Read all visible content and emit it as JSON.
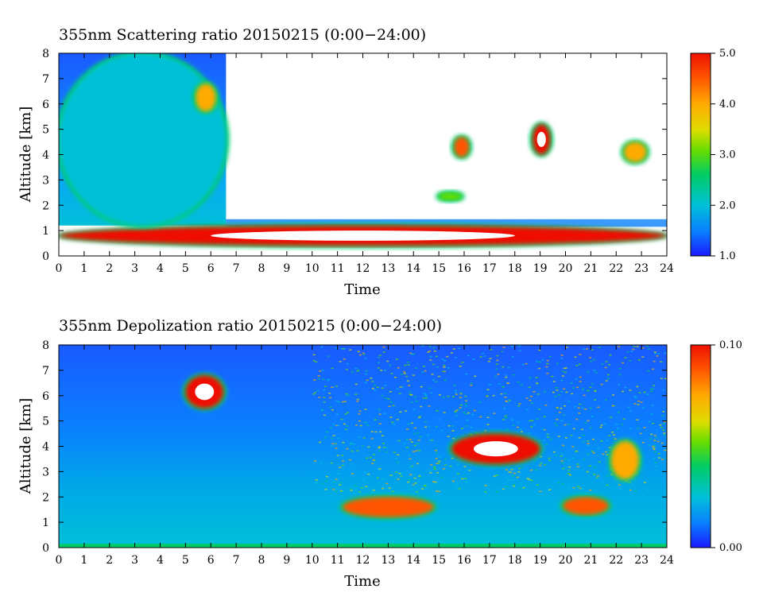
{
  "chart_data": [
    {
      "type": "heatmap",
      "title": "355nm Scattering ratio  20150215 (0:00−24:00)",
      "xlabel": "Time",
      "ylabel": "Altitude [km]",
      "xlim": [
        0,
        24
      ],
      "ylim": [
        0,
        8
      ],
      "xticks": [
        "0",
        "1",
        "2",
        "3",
        "4",
        "5",
        "6",
        "7",
        "8",
        "9",
        "10",
        "11",
        "12",
        "13",
        "14",
        "15",
        "16",
        "17",
        "18",
        "19",
        "20",
        "21",
        "22",
        "23",
        "24"
      ],
      "yticks": [
        "0",
        "1",
        "2",
        "3",
        "4",
        "5",
        "6",
        "7",
        "8"
      ],
      "colorbar": {
        "min": 1.0,
        "max": 5.0,
        "labels": [
          "5.0",
          "4.0",
          "3.0",
          "2.0",
          "1.0"
        ]
      },
      "colormap": [
        "#1a1aff",
        "#0a7fff",
        "#00c0d8",
        "#00cc66",
        "#66dd00",
        "#dddd00",
        "#ffaa00",
        "#ff5500",
        "#ee1100"
      ],
      "features": [
        {
          "name": "boundary layer",
          "t": [
            0,
            24
          ],
          "alt": [
            0.4,
            1.2
          ],
          "value": 4.8
        },
        {
          "name": "aerosol layer",
          "t": [
            0,
            6.6
          ],
          "alt": [
            1.2,
            8.0
          ],
          "value": 1.8
        },
        {
          "name": "cloud",
          "t": [
            5.4,
            6.2
          ],
          "alt": [
            5.7,
            6.8
          ],
          "value": 4.0
        },
        {
          "name": "cloud",
          "t": [
            15.6,
            16.2
          ],
          "alt": [
            3.9,
            4.7
          ],
          "value": 4.5
        },
        {
          "name": "cloud",
          "t": [
            18.7,
            19.4
          ],
          "alt": [
            4.0,
            5.2
          ],
          "value": 5.0
        },
        {
          "name": "cloud",
          "t": [
            22.3,
            23.2
          ],
          "alt": [
            3.7,
            4.5
          ],
          "value": 4.2
        },
        {
          "name": "cloud",
          "t": [
            15.0,
            15.9
          ],
          "alt": [
            2.2,
            2.5
          ],
          "value": 3.0
        }
      ]
    },
    {
      "type": "heatmap",
      "title": "355nm Depolization ratio  20150215 (0:00−24:00)",
      "xlabel": "Time",
      "ylabel": "Altitude [km]",
      "xlim": [
        0,
        24
      ],
      "ylim": [
        0,
        8
      ],
      "xticks": [
        "0",
        "1",
        "2",
        "3",
        "4",
        "5",
        "6",
        "7",
        "8",
        "9",
        "10",
        "11",
        "12",
        "13",
        "14",
        "15",
        "16",
        "17",
        "18",
        "19",
        "20",
        "21",
        "22",
        "23",
        "24"
      ],
      "yticks": [
        "0",
        "1",
        "2",
        "3",
        "4",
        "5",
        "6",
        "7",
        "8"
      ],
      "colorbar": {
        "min": 0.0,
        "max": 0.1,
        "labels": [
          "0.10",
          "0.00"
        ]
      },
      "colormap": [
        "#1a1aff",
        "#0a7fff",
        "#00c0d8",
        "#00cc66",
        "#66dd00",
        "#dddd00",
        "#ffaa00",
        "#ff5500",
        "#ee1100"
      ],
      "features": [
        {
          "name": "cloud",
          "t": [
            5.0,
            6.5
          ],
          "alt": [
            5.5,
            6.8
          ],
          "value": 0.1
        },
        {
          "name": "cloud",
          "t": [
            11.2,
            14.8
          ],
          "alt": [
            1.2,
            2.0
          ],
          "value": 0.09
        },
        {
          "name": "cloud",
          "t": [
            15.5,
            19.0
          ],
          "alt": [
            3.3,
            4.5
          ],
          "value": 0.1
        },
        {
          "name": "cloud",
          "t": [
            19.9,
            21.7
          ],
          "alt": [
            1.3,
            2.0
          ],
          "value": 0.09
        },
        {
          "name": "cloud",
          "t": [
            21.8,
            22.9
          ],
          "alt": [
            2.7,
            4.2
          ],
          "value": 0.08
        }
      ]
    }
  ]
}
